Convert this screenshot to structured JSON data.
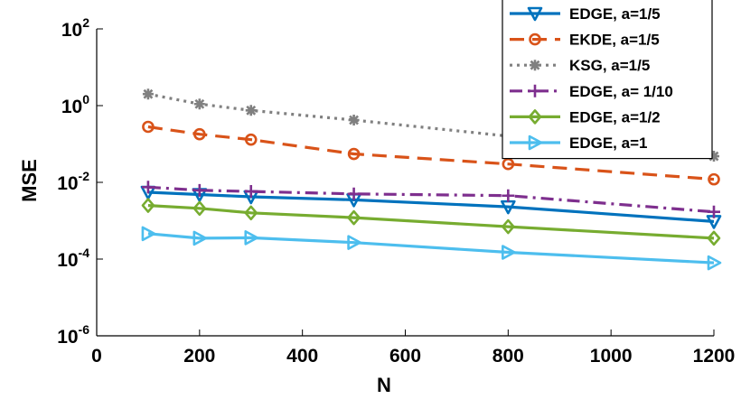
{
  "chart_data": {
    "type": "line",
    "title": "",
    "xlabel": "N",
    "ylabel": "MSE",
    "xlim": [
      0,
      1200
    ],
    "ylim": [
      1e-06,
      100
    ],
    "yscale": "log",
    "grid": false,
    "legend_position": "top-right",
    "x_ticks": [
      {
        "value": 0,
        "label": "0"
      },
      {
        "value": 200,
        "label": "200"
      },
      {
        "value": 400,
        "label": "400"
      },
      {
        "value": 600,
        "label": "600"
      },
      {
        "value": 800,
        "label": "800"
      },
      {
        "value": 1000,
        "label": "1000"
      },
      {
        "value": 1200,
        "label": "1200"
      }
    ],
    "y_ticks": [
      {
        "value": 100,
        "base": "10",
        "exp": "2"
      },
      {
        "value": 1,
        "base": "10",
        "exp": "0"
      },
      {
        "value": 0.01,
        "base": "10",
        "exp": "-2"
      },
      {
        "value": 0.0001,
        "base": "10",
        "exp": "-4"
      },
      {
        "value": 1e-06,
        "base": "10",
        "exp": "-6"
      }
    ],
    "series": [
      {
        "name": "EDGE, a=1/5",
        "color": "#0072bd",
        "dash": "solid",
        "marker": "triangle-down",
        "x": [
          100,
          200,
          300,
          500,
          800,
          1200
        ],
        "values": [
          0.0055,
          0.0048,
          0.0042,
          0.0035,
          0.0023,
          0.00095
        ]
      },
      {
        "name": "EKDE, a=1/5",
        "color": "#d95319",
        "dash": "dashed",
        "marker": "circle",
        "x": [
          100,
          200,
          300,
          500,
          800,
          1200
        ],
        "values": [
          0.28,
          0.18,
          0.13,
          0.055,
          0.03,
          0.012
        ]
      },
      {
        "name": "KSG,  a=1/5",
        "color": "#808080",
        "dash": "dotted",
        "marker": "asterisk",
        "x": [
          100,
          200,
          300,
          500,
          800,
          1200
        ],
        "values": [
          2.0,
          1.1,
          0.75,
          0.42,
          0.16,
          0.048
        ]
      },
      {
        "name": "EDGE, a= 1/10",
        "color": "#7e2f8e",
        "dash": "dashdot",
        "marker": "plus",
        "x": [
          100,
          200,
          300,
          500,
          800,
          1200
        ],
        "values": [
          0.0075,
          0.0062,
          0.0058,
          0.005,
          0.0045,
          0.0017
        ]
      },
      {
        "name": "EDGE, a=1/2",
        "color": "#77ac30",
        "dash": "solid",
        "marker": "diamond",
        "x": [
          100,
          200,
          300,
          500,
          800,
          1200
        ],
        "values": [
          0.0025,
          0.0021,
          0.0016,
          0.0012,
          0.0007,
          0.00035
        ]
      },
      {
        "name": "EDGE, a=1",
        "color": "#4dbeee",
        "dash": "solid",
        "marker": "triangle-right",
        "x": [
          100,
          200,
          300,
          500,
          800,
          1200
        ],
        "values": [
          0.00046,
          0.00035,
          0.00036,
          0.00027,
          0.00015,
          8e-05
        ]
      }
    ]
  }
}
